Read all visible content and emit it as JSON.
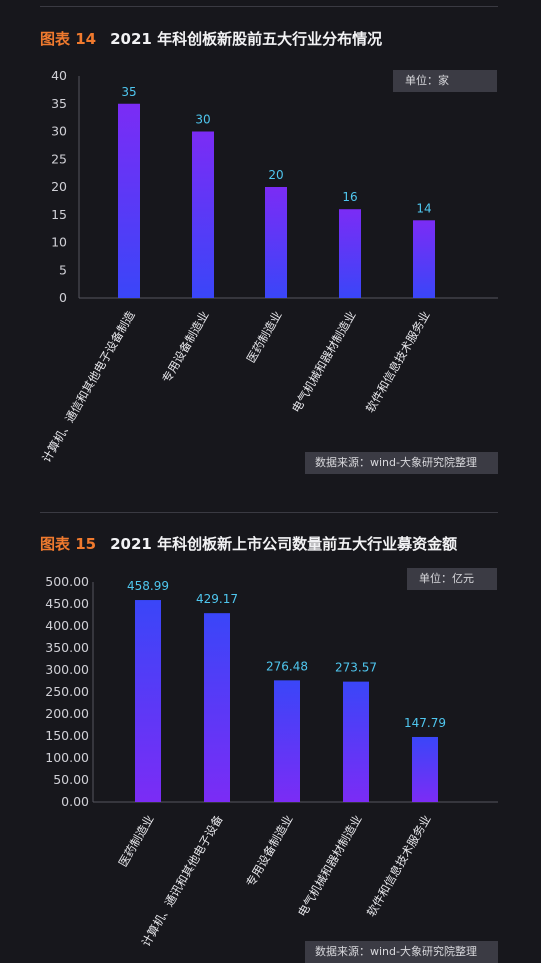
{
  "charts": [
    {
      "figure_no": "图表 14",
      "title": "2021 年科创板新股前五大行业分布情况",
      "unit": "单位：家",
      "source": "数据来源：wind-大象研究院整理"
    },
    {
      "figure_no": "图表 15",
      "title": "2021 年科创板新上市公司数量前五大行业募资金额",
      "unit": "单位：亿元",
      "source": "数据来源：wind-大象研究院整理"
    }
  ],
  "chart_data": [
    {
      "type": "bar",
      "title": "2021 年科创板新股前五大行业分布情况",
      "categories": [
        "计算机、通信和其他电子设备制造",
        "专用设备制造业",
        "医药制造业",
        "电气机械和器材制造业",
        "软件和信息技术服务业"
      ],
      "values": [
        35,
        30,
        20,
        16,
        14
      ],
      "data_labels": [
        "35",
        "30",
        "20",
        "16",
        "14"
      ],
      "yticks": [
        "0",
        "5",
        "10",
        "15",
        "20",
        "25",
        "30",
        "35",
        "40"
      ],
      "ylim": [
        0,
        40
      ],
      "grid": false,
      "colors": {
        "bar_top": "#7b2cf5",
        "bar_bottom": "#3a46f8",
        "label": "#4fc6ee"
      }
    },
    {
      "type": "bar",
      "title": "2021 年科创板新上市公司数量前五大行业募资金额",
      "categories": [
        "医药制造业",
        "计算机、通讯和其他电子设备",
        "专用设备制造业",
        "电气机械和器材制造业",
        "软件和信息技术服务业"
      ],
      "values": [
        458.99,
        429.17,
        276.48,
        273.57,
        147.79
      ],
      "data_labels": [
        "458.99",
        "429.17",
        "276.48",
        "273.57",
        "147.79"
      ],
      "yticks": [
        "0.00",
        "50.00",
        "100.00",
        "150.00",
        "200.00",
        "250.00",
        "300.00",
        "350.00",
        "400.00",
        "450.00",
        "500.00"
      ],
      "ylim": [
        0,
        500
      ],
      "grid": false,
      "colors": {
        "bar_top": "#3a46f8",
        "bar_bottom": "#7b2cf5",
        "label": "#4fc6ee"
      }
    }
  ]
}
